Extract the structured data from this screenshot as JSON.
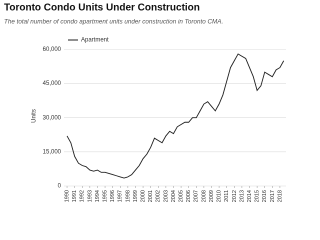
{
  "chart_data": {
    "type": "line",
    "title": "Toronto Condo Units Under Construction",
    "subtitle": "The total number of condo apartment units under construction in Toronto CMA.",
    "y_label": "Units",
    "x": [
      1990,
      1990.5,
      1991,
      1991.5,
      1992,
      1992.5,
      1993,
      1993.5,
      1994,
      1994.5,
      1995,
      1995.5,
      1996,
      1996.5,
      1997,
      1997.5,
      1998,
      1998.5,
      1999,
      1999.5,
      2000,
      2000.5,
      2001,
      2001.5,
      2002,
      2002.5,
      2003,
      2003.5,
      2004,
      2004.5,
      2005,
      2005.5,
      2006,
      2006.5,
      2007,
      2007.5,
      2008,
      2008.5,
      2009,
      2009.5,
      2010,
      2010.5,
      2011,
      2011.5,
      2012,
      2012.5,
      2013,
      2013.5,
      2014,
      2014.5,
      2015,
      2015.5,
      2016,
      2016.5,
      2017,
      2017.5,
      2018,
      2018.5
    ],
    "series": [
      {
        "name": "Apartment",
        "color": "#222222",
        "values": [
          22000,
          19000,
          13000,
          10000,
          9000,
          8500,
          7000,
          6500,
          7000,
          6000,
          6000,
          5500,
          5000,
          4500,
          4000,
          3500,
          4000,
          5000,
          7000,
          9000,
          12000,
          14000,
          17000,
          21000,
          20000,
          19000,
          22000,
          24000,
          23000,
          26000,
          27000,
          28000,
          28000,
          30000,
          30000,
          33000,
          36000,
          37000,
          35000,
          33000,
          36000,
          40000,
          46000,
          52000,
          55000,
          58000,
          57000,
          56000,
          52000,
          48000,
          42000,
          44000,
          50000,
          49000,
          48000,
          51000,
          52000,
          55000
        ]
      }
    ],
    "xlim": [
      1989.6,
      2018.8
    ],
    "xticks": [
      1990,
      1991,
      1992,
      1993,
      1994,
      1995,
      1996,
      1997,
      1998,
      1999,
      2000,
      2001,
      2002,
      2003,
      2004,
      2005,
      2006,
      2007,
      2008,
      2009,
      2010,
      2011,
      2012,
      2013,
      2014,
      2015,
      2016,
      2017,
      2018
    ],
    "ylim": [
      0,
      65000
    ],
    "yticks": [
      0,
      {
        "value": 15000,
        "label": "15,000"
      },
      {
        "value": 30000,
        "label": "30,000"
      },
      {
        "value": 45000,
        "label": "45,000"
      },
      {
        "value": 60000,
        "label": "60,000"
      }
    ],
    "grid": true,
    "legend": "top-left"
  }
}
